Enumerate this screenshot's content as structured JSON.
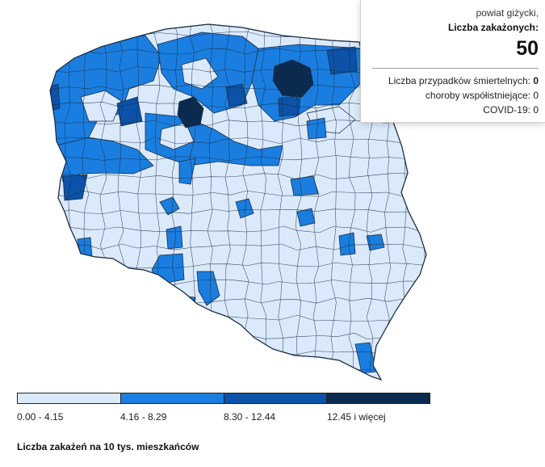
{
  "tooltip": {
    "region": "powiat giżycki,",
    "cases_label": "Liczba zakażonych:",
    "cases_value": "50",
    "deaths_label": "Liczba przypadków śmiertelnych:",
    "deaths_value": "0",
    "comorbid_label": "choroby współistniejące:",
    "comorbid_value": "0",
    "covid_label": "COVID-19:",
    "covid_value": "0"
  },
  "legend": {
    "bins": [
      {
        "label": "0.00 - 4.15",
        "color": "#dbeafb"
      },
      {
        "label": "4.16 - 8.29",
        "color": "#1a7ee0"
      },
      {
        "label": "8.30 - 12.44",
        "color": "#0b52a8"
      },
      {
        "label": "12.45 i więcej",
        "color": "#0a2a50"
      }
    ]
  },
  "caption": "Liczba zakażeń na 10 tys. mieszkańców",
  "colors": {
    "border": "#1c2d45",
    "background": "#ffffff"
  }
}
